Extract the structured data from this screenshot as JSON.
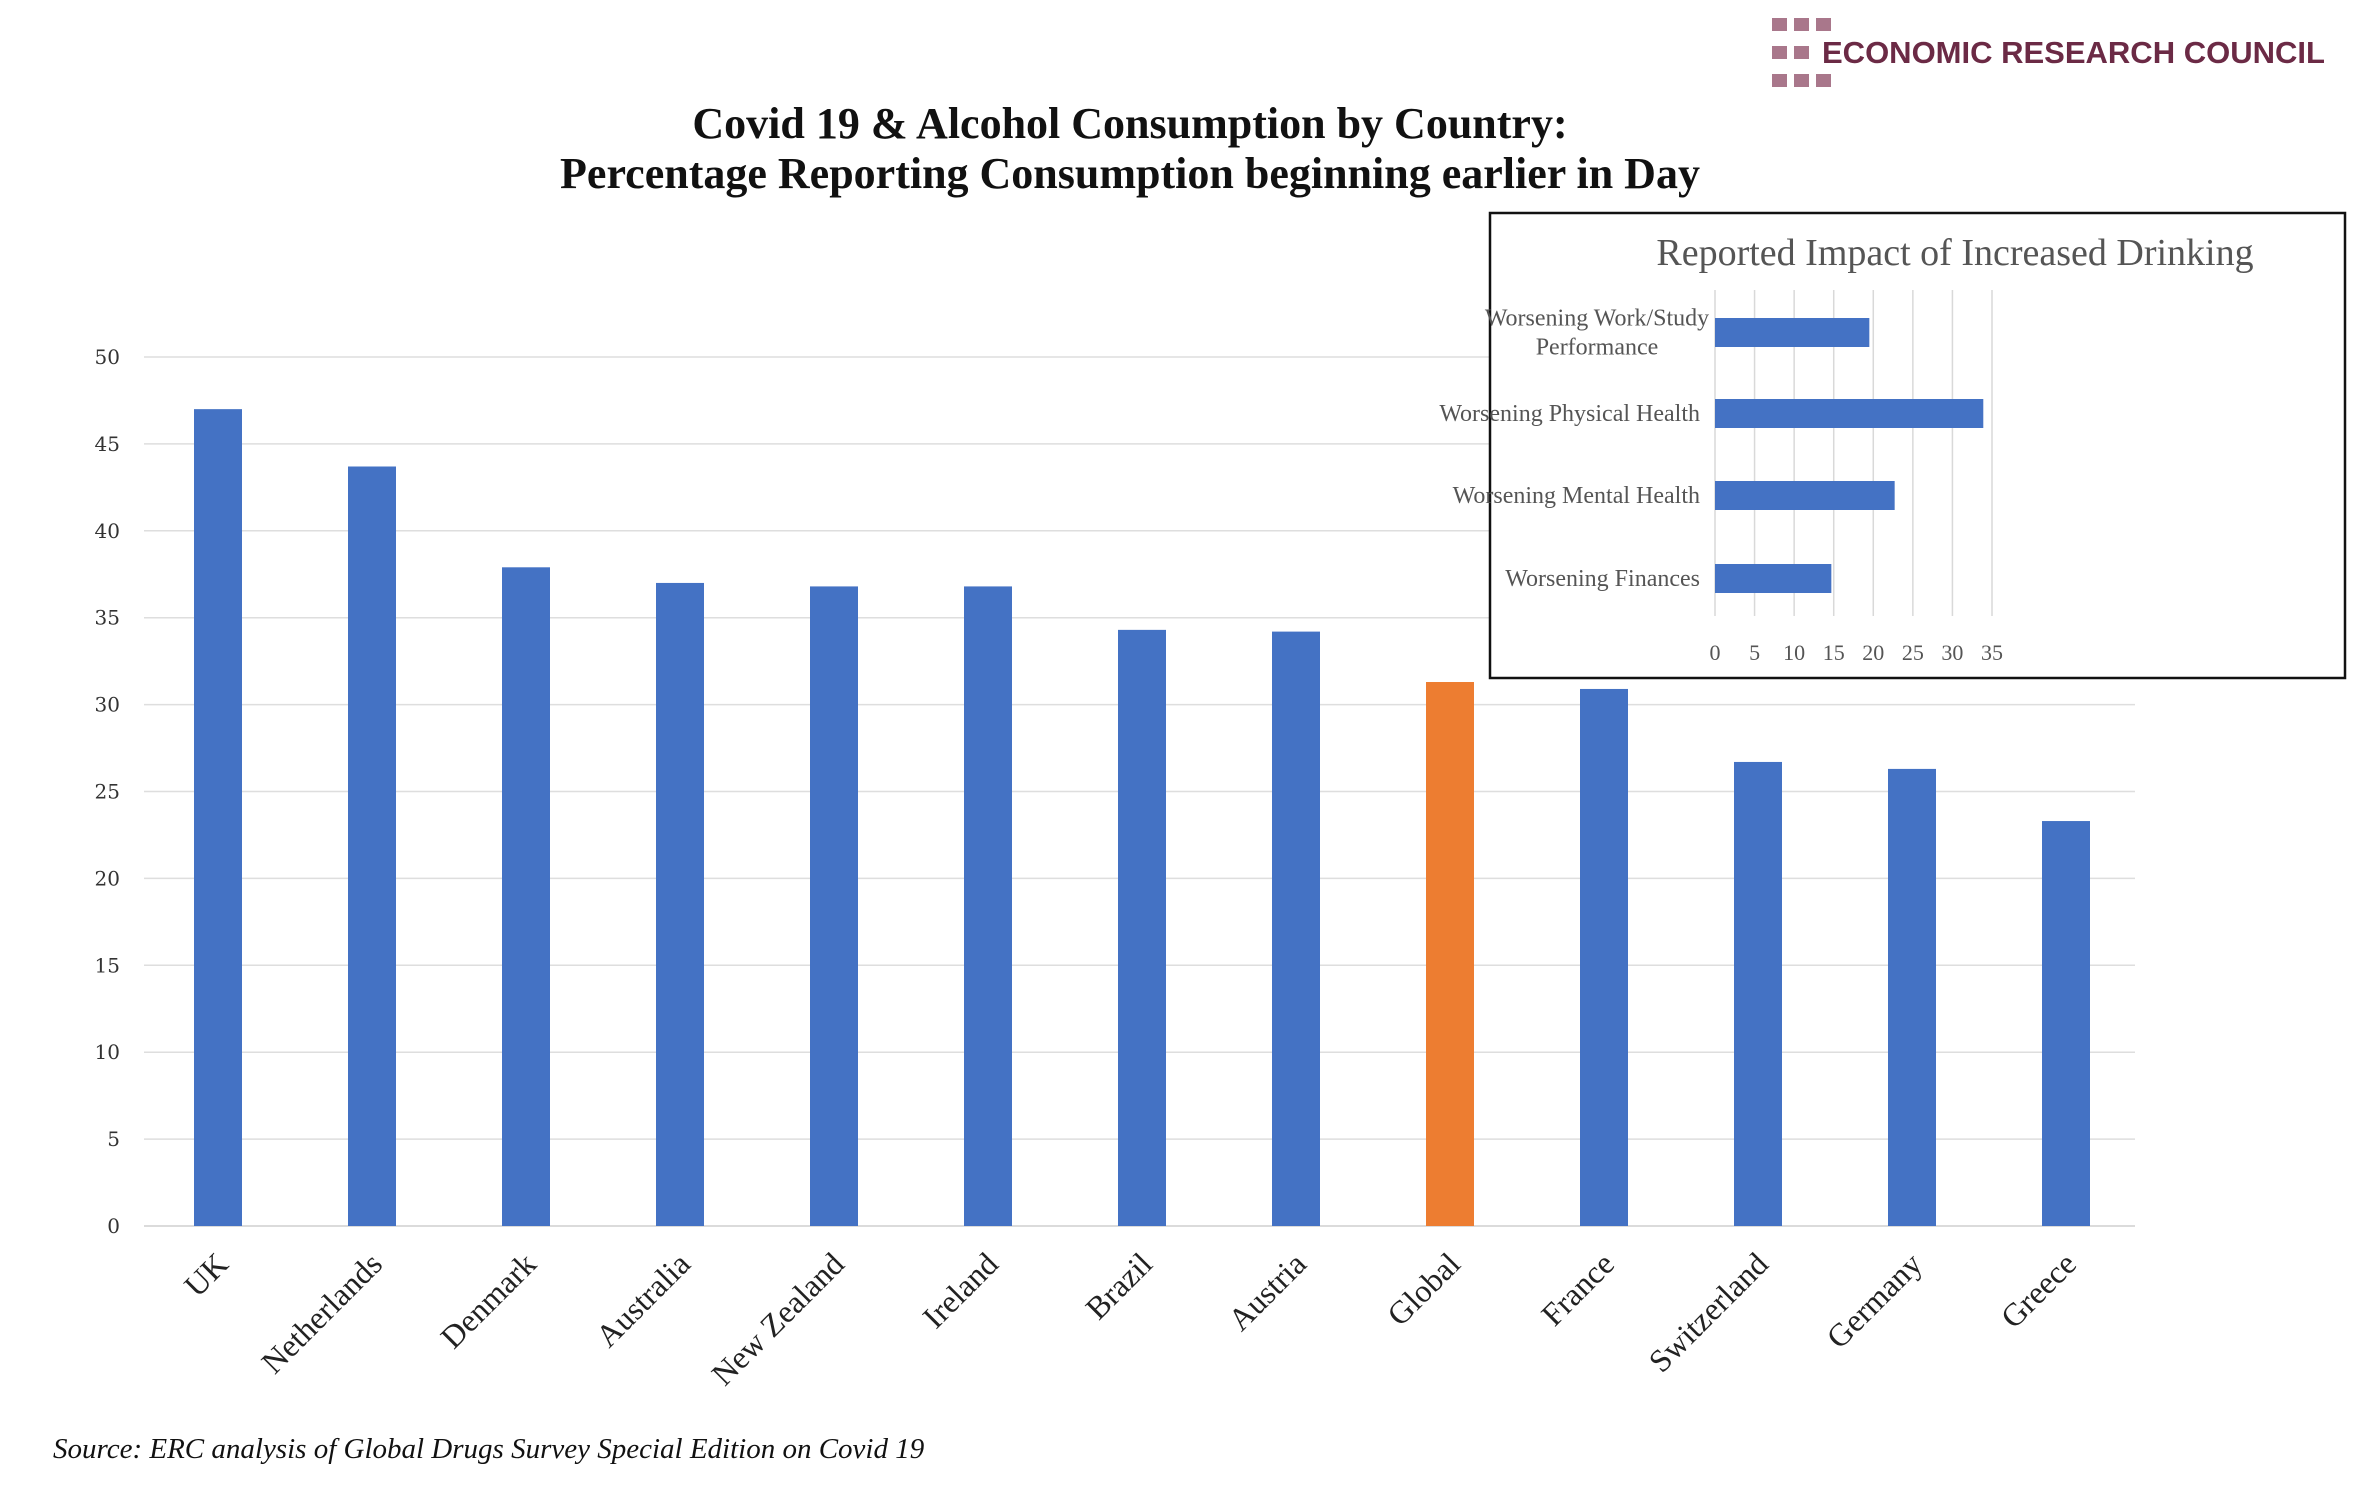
{
  "logo": {
    "text": "ECONOMIC RESEARCH COUNCIL",
    "color": "#6b2a45",
    "square_color": "#a9778b"
  },
  "source": "Source: ERC analysis of Global Drugs Survey  Special Edition on Covid 19",
  "chart_data": [
    {
      "type": "bar",
      "title": [
        "Covid 19 & Alcohol Consumption by Country:",
        "Percentage Reporting Consumption beginning earlier in Day"
      ],
      "categories": [
        "UK",
        "Netherlands",
        "Denmark",
        "Australia",
        "New Zealand",
        "Ireland",
        "Brazil",
        "Austria",
        "Global",
        "France",
        "Switzerland",
        "Germany",
        "Greece"
      ],
      "values": [
        47.0,
        43.7,
        37.9,
        37.0,
        36.8,
        36.8,
        34.3,
        34.2,
        31.3,
        30.9,
        26.7,
        26.3,
        23.3
      ],
      "colors": [
        "#4472c4",
        "#4472c4",
        "#4472c4",
        "#4472c4",
        "#4472c4",
        "#4472c4",
        "#4472c4",
        "#4472c4",
        "#ed7d31",
        "#4472c4",
        "#4472c4",
        "#4472c4",
        "#4472c4"
      ],
      "ylim": [
        0,
        50
      ],
      "yticks": [
        "0",
        "5",
        "10",
        "15",
        "20",
        "25",
        "30",
        "35",
        "40",
        "45",
        "50"
      ],
      "grid": true,
      "xlabel": "",
      "ylabel": ""
    },
    {
      "type": "bar",
      "orientation": "horizontal",
      "title": "Reported Impact of Increased Drinking",
      "categories": [
        [
          "Worsening Work/Study",
          "Performance"
        ],
        [
          "Worsening Physical Health"
        ],
        [
          "Worsening Mental Health"
        ],
        [
          "Worsening Finances"
        ]
      ],
      "values": [
        19.5,
        33.9,
        22.7,
        14.7
      ],
      "color": "#4472c4",
      "xlim": [
        0,
        35
      ],
      "xticks": [
        "0",
        "5",
        "10",
        "15",
        "20",
        "25",
        "30",
        "35"
      ],
      "grid": true
    }
  ]
}
